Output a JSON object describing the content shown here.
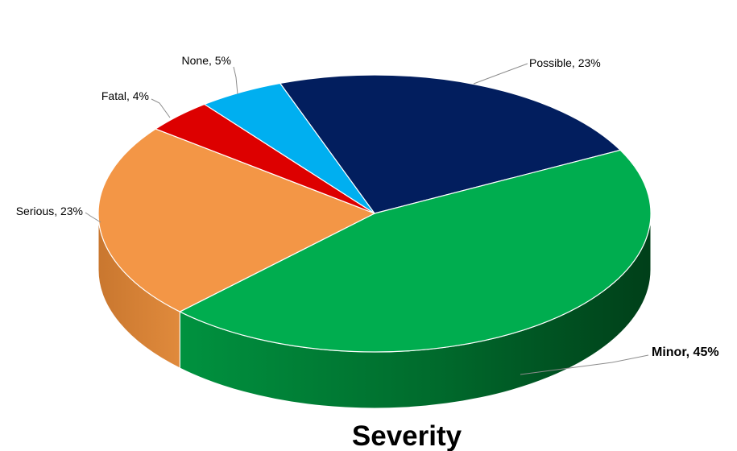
{
  "chart_data": {
    "type": "pie",
    "title": "Severity",
    "style": "3d",
    "slices": [
      {
        "label": "Possible",
        "value": 23,
        "display": "Possible, 23%",
        "color": "#021e5e",
        "side": "#01123a",
        "bold": false
      },
      {
        "label": "Minor",
        "value": 45,
        "display": "Minor, 45%",
        "color": "#00ad4f",
        "side": "#00823b",
        "bold": true
      },
      {
        "label": "Serious",
        "value": 23,
        "display": "Serious, 23%",
        "color": "#f39646",
        "side": "#d07a32",
        "bold": false
      },
      {
        "label": "Fatal",
        "value": 4,
        "display": "Fatal, 4%",
        "color": "#dd0000",
        "side": "#a80000",
        "bold": false
      },
      {
        "label": "None",
        "value": 5,
        "display": "None, 5%",
        "color": "#00aff0",
        "side": "#0089bb",
        "bold": false
      }
    ]
  }
}
